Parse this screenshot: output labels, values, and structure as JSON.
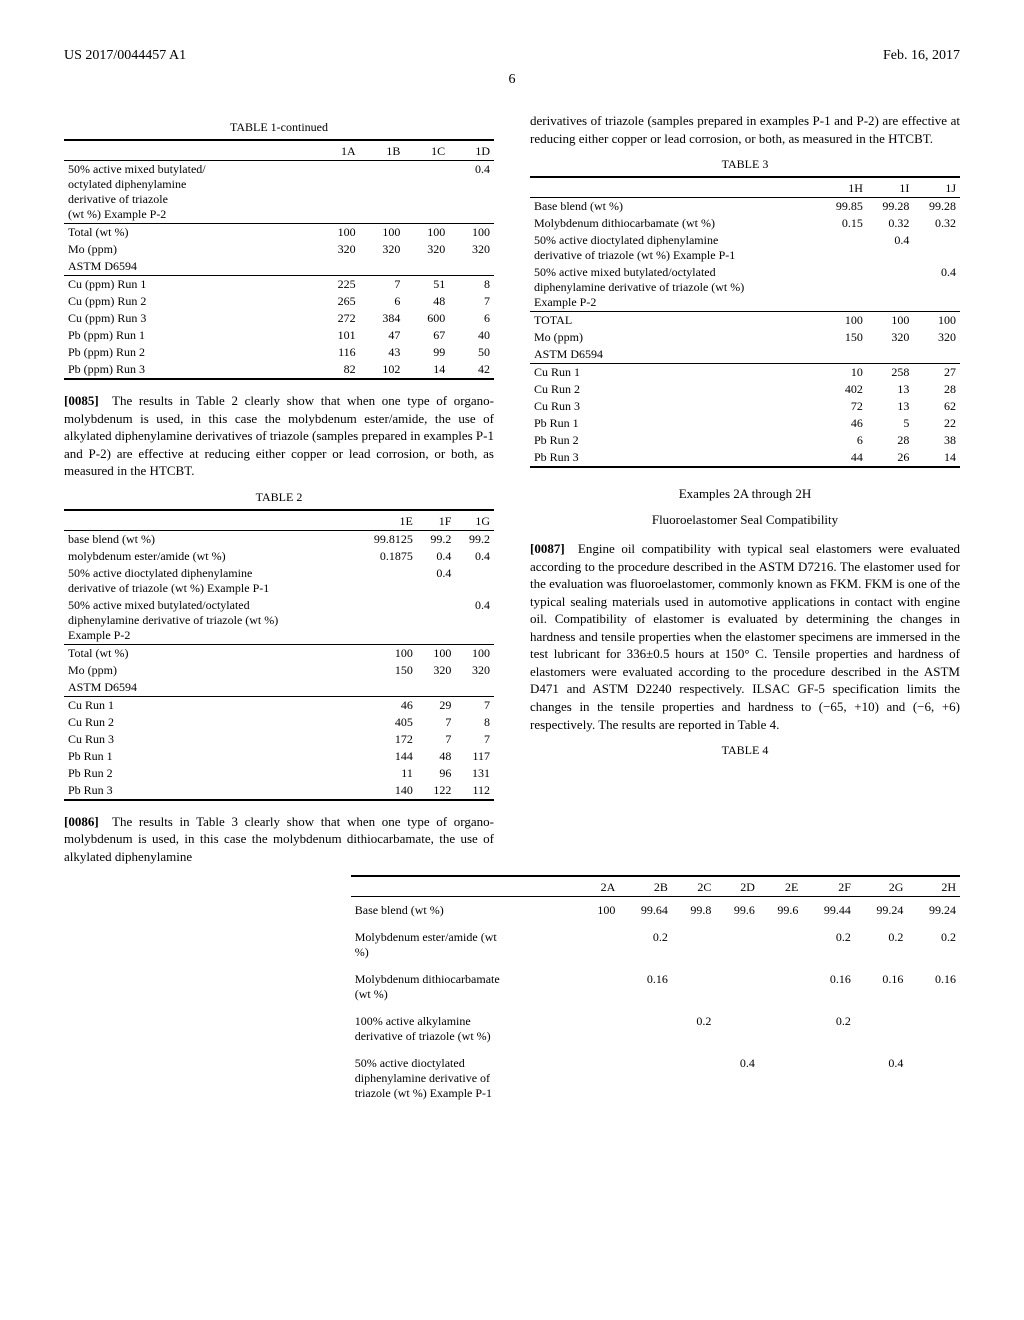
{
  "header": {
    "left": "US 2017/0044457 A1",
    "right": "Feb. 16, 2017",
    "page": "6"
  },
  "table1": {
    "caption": "TABLE 1-continued",
    "cols": [
      "",
      "1A",
      "1B",
      "1C",
      "1D"
    ],
    "rows_top": [
      [
        "50% active mixed butylated/\noctylated diphenylamine\nderivative of triazole\n(wt %) Example P-2",
        "",
        "",
        "",
        "0.4"
      ]
    ],
    "rows_mid": [
      [
        "Total (wt %)",
        "100",
        "100",
        "100",
        "100"
      ],
      [
        "Mo (ppm)",
        "320",
        "320",
        "320",
        "320"
      ],
      [
        "ASTM D6594",
        "",
        "",
        "",
        ""
      ]
    ],
    "rows_bot": [
      [
        "Cu (ppm) Run 1",
        "225",
        "7",
        "51",
        "8"
      ],
      [
        "Cu (ppm) Run 2",
        "265",
        "6",
        "48",
        "7"
      ],
      [
        "Cu (ppm) Run 3",
        "272",
        "384",
        "600",
        "6"
      ],
      [
        "Pb (ppm) Run 1",
        "101",
        "47",
        "67",
        "40"
      ],
      [
        "Pb (ppm) Run 2",
        "116",
        "43",
        "99",
        "50"
      ],
      [
        "Pb (ppm) Run 3",
        "82",
        "102",
        "14",
        "42"
      ]
    ]
  },
  "para85": {
    "num": "[0085]",
    "text": "The results in Table 2 clearly show that when one type of organo-molybdenum is used, in this case the molybdenum ester/amide, the use of alkylated diphenylamine derivatives of triazole (samples prepared in examples P-1 and P-2) are effective at reducing either copper or lead corrosion, or both, as measured in the HTCBT."
  },
  "table2": {
    "caption": "TABLE 2",
    "cols": [
      "",
      "1E",
      "1F",
      "1G"
    ],
    "rows_top": [
      [
        "base blend (wt %)",
        "99.8125",
        "99.2",
        "99.2"
      ],
      [
        "molybdenum ester/amide (wt %)",
        "0.1875",
        "0.4",
        "0.4"
      ],
      [
        "50% active dioctylated diphenylamine\nderivative of triazole (wt %) Example P-1",
        "",
        "0.4",
        ""
      ],
      [
        "50% active mixed butylated/octylated\ndiphenylamine derivative of triazole (wt %)\nExample P-2",
        "",
        "",
        "0.4"
      ]
    ],
    "rows_mid": [
      [
        "Total (wt %)",
        "100",
        "100",
        "100"
      ],
      [
        "Mo (ppm)",
        "150",
        "320",
        "320"
      ],
      [
        "ASTM D6594",
        "",
        "",
        ""
      ]
    ],
    "rows_bot": [
      [
        "Cu Run 1",
        "46",
        "29",
        "7"
      ],
      [
        "Cu Run 2",
        "405",
        "7",
        "8"
      ],
      [
        "Cu Run 3",
        "172",
        "7",
        "7"
      ],
      [
        "Pb Run 1",
        "144",
        "48",
        "117"
      ],
      [
        "Pb Run 2",
        "11",
        "96",
        "131"
      ],
      [
        "Pb Run 3",
        "140",
        "122",
        "112"
      ]
    ]
  },
  "para86": {
    "num": "[0086]",
    "text": "The results in Table 3 clearly show that when one type of organo-molybdenum is used, in this case the molybdenum dithiocarbamate, the use of alkylated diphenylamine"
  },
  "col2_lead": "derivatives of triazole (samples prepared in examples P-1 and P-2) are effective at reducing either copper or lead corrosion, or both, as measured in the HTCBT.",
  "table3": {
    "caption": "TABLE 3",
    "cols": [
      "",
      "1H",
      "1I",
      "1J"
    ],
    "rows_top": [
      [
        "Base blend (wt %)",
        "99.85",
        "99.28",
        "99.28"
      ],
      [
        "Molybdenum dithiocarbamate (wt %)",
        "0.15",
        "0.32",
        "0.32"
      ],
      [
        "50% active dioctylated diphenylamine\nderivative of triazole (wt %) Example P-1",
        "",
        "0.4",
        ""
      ],
      [
        "50% active mixed butylated/octylated\ndiphenylamine derivative of triazole (wt %)\nExample P-2",
        "",
        "",
        "0.4"
      ]
    ],
    "rows_mid": [
      [
        "TOTAL",
        "100",
        "100",
        "100"
      ],
      [
        "Mo (ppm)",
        "150",
        "320",
        "320"
      ],
      [
        "ASTM D6594",
        "",
        "",
        ""
      ]
    ],
    "rows_bot": [
      [
        "Cu Run 1",
        "10",
        "258",
        "27"
      ],
      [
        "Cu Run 2",
        "402",
        "13",
        "28"
      ],
      [
        "Cu Run 3",
        "72",
        "13",
        "62"
      ],
      [
        "Pb Run 1",
        "46",
        "5",
        "22"
      ],
      [
        "Pb Run 2",
        "6",
        "28",
        "38"
      ],
      [
        "Pb Run 3",
        "44",
        "26",
        "14"
      ]
    ]
  },
  "section2": {
    "title": "Examples 2A through 2H",
    "subtitle": "Fluoroelastomer Seal Compatibility"
  },
  "para87": {
    "num": "[0087]",
    "text": "Engine oil compatibility with typical seal elastomers were evaluated according to the procedure described in the ASTM D7216. The elastomer used for the evaluation was fluoroelastomer, commonly known as FKM. FKM is one of the typical sealing materials used in automotive applications in contact with engine oil. Compatibility of elastomer is evaluated by determining the changes in hardness and tensile properties when the elastomer specimens are immersed in the test lubricant for 336±0.5 hours at 150° C. Tensile properties and hardness of elastomers were evaluated according to the procedure described in the ASTM D471 and ASTM D2240 respectively. ILSAC GF-5 specification limits the changes in the tensile properties and hardness to (−65, +10) and (−6, +6) respectively. The results are reported in Table 4."
  },
  "table4": {
    "caption": "TABLE 4",
    "cols": [
      "",
      "2A",
      "2B",
      "2C",
      "2D",
      "2E",
      "2F",
      "2G",
      "2H"
    ],
    "rows": [
      [
        "Base blend (wt %)",
        "100",
        "99.64",
        "99.8",
        "99.6",
        "99.6",
        "99.44",
        "99.24",
        "99.24"
      ],
      [
        "Molybdenum ester/amide (wt\n%)",
        "",
        "0.2",
        "",
        "",
        "",
        "0.2",
        "0.2",
        "0.2"
      ],
      [
        "Molybdenum dithiocarbamate\n(wt %)",
        "",
        "0.16",
        "",
        "",
        "",
        "0.16",
        "0.16",
        "0.16"
      ],
      [
        "100% active alkylamine\nderivative of triazole (wt %)",
        "",
        "",
        "0.2",
        "",
        "",
        "0.2",
        "",
        ""
      ],
      [
        "50% active dioctylated\ndiphenylamine derivative of\ntriazole (wt %) Example P-1",
        "",
        "",
        "",
        "0.4",
        "",
        "",
        "0.4",
        ""
      ]
    ]
  }
}
